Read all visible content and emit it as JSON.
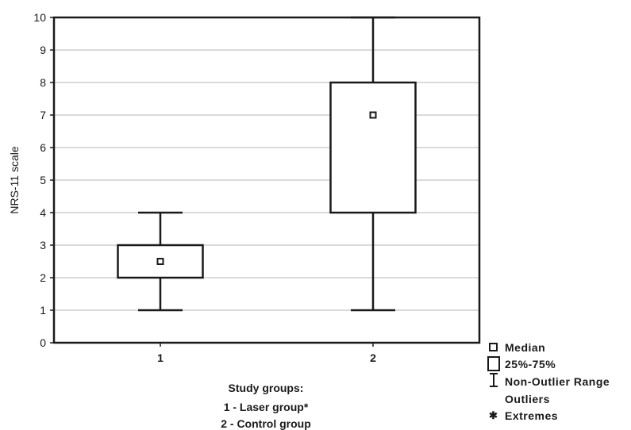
{
  "chart_data": {
    "type": "box",
    "ylabel": "NRS-11 scale",
    "ylim": [
      0,
      10
    ],
    "yticks": [
      0,
      1,
      2,
      3,
      4,
      5,
      6,
      7,
      8,
      9,
      10
    ],
    "grid": true,
    "categories": [
      "1",
      "2"
    ],
    "boxes": [
      {
        "category": "1",
        "median": 2.5,
        "q1": 2,
        "q3": 3,
        "whisker_low": 1,
        "whisker_high": 4
      },
      {
        "category": "2",
        "median": 7,
        "q1": 4,
        "q3": 8,
        "whisker_low": 1,
        "whisker_high": 10
      }
    ],
    "xcaption": [
      "Study groups:",
      "1 - Laser group*",
      "2 - Control group"
    ],
    "legend": {
      "position": "bottom-right",
      "items": [
        "Median",
        "25%-75%",
        "Non-Outlier Range",
        "Outliers",
        "Extremes"
      ]
    }
  }
}
